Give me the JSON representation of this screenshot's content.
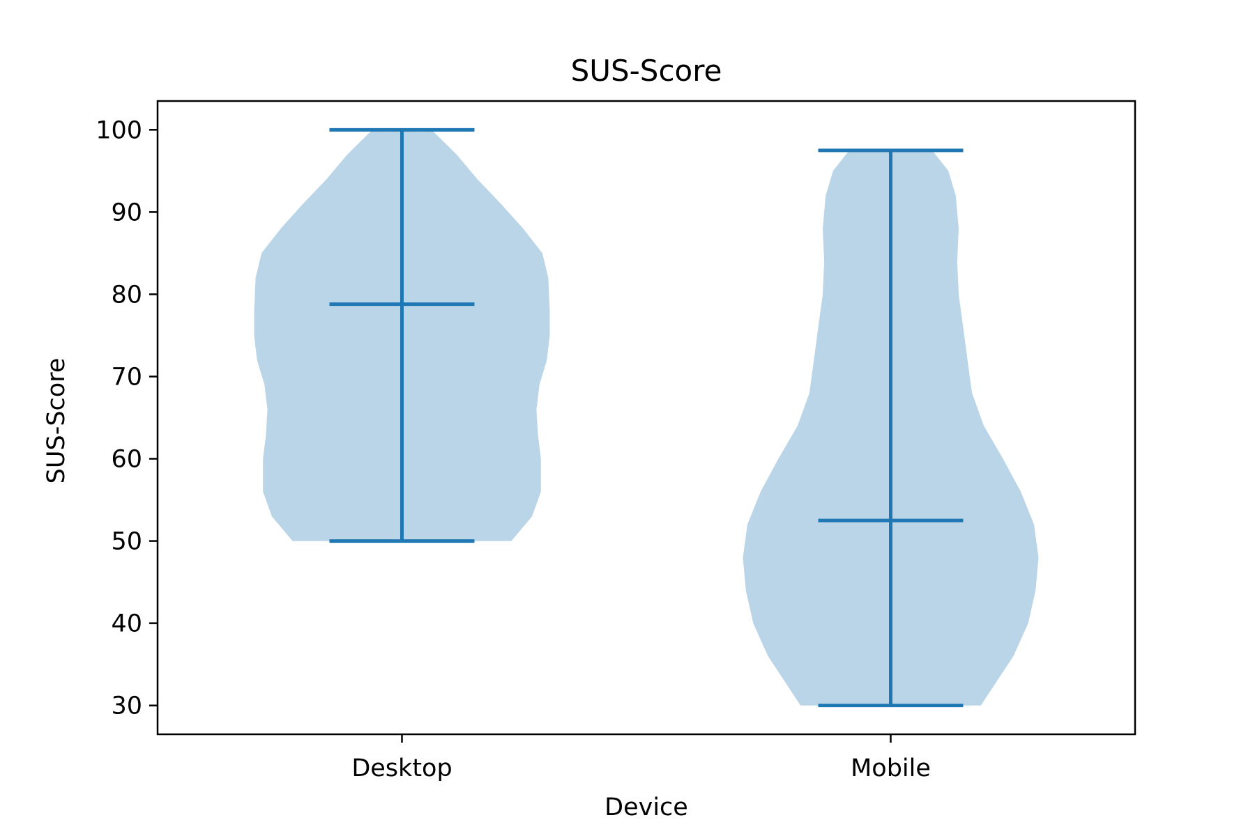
{
  "chart_data": {
    "type": "violin",
    "title": "SUS-Score",
    "xlabel": "Device",
    "ylabel": "SUS-Score",
    "categories": [
      "Desktop",
      "Mobile"
    ],
    "ylim": [
      26.5,
      103.5
    ],
    "yticks": [
      30,
      40,
      50,
      60,
      70,
      80,
      90,
      100
    ],
    "grid": false,
    "colors": {
      "fill": "#bbd5e8",
      "line": "#1f77b4"
    },
    "series": [
      {
        "category": "Desktop",
        "min": 50,
        "max": 100,
        "median": 78.8,
        "density": [
          [
            50,
            0.74
          ],
          [
            53,
            0.88
          ],
          [
            56,
            0.94
          ],
          [
            60,
            0.94
          ],
          [
            63,
            0.92
          ],
          [
            66,
            0.91
          ],
          [
            69,
            0.93
          ],
          [
            72,
            0.98
          ],
          [
            75,
            1.0
          ],
          [
            78,
            1.0
          ],
          [
            82,
            0.99
          ],
          [
            85,
            0.95
          ],
          [
            88,
            0.82
          ],
          [
            91,
            0.67
          ],
          [
            94,
            0.51
          ],
          [
            97,
            0.37
          ],
          [
            100,
            0.2
          ]
        ]
      },
      {
        "category": "Mobile",
        "min": 30,
        "max": 97.5,
        "median": 52.5,
        "density": [
          [
            30,
            0.61
          ],
          [
            33,
            0.72
          ],
          [
            36,
            0.83
          ],
          [
            40,
            0.93
          ],
          [
            44,
            0.98
          ],
          [
            48,
            1.0
          ],
          [
            52,
            0.97
          ],
          [
            56,
            0.88
          ],
          [
            60,
            0.76
          ],
          [
            64,
            0.63
          ],
          [
            68,
            0.55
          ],
          [
            72,
            0.52
          ],
          [
            76,
            0.49
          ],
          [
            80,
            0.46
          ],
          [
            84,
            0.45
          ],
          [
            88,
            0.46
          ],
          [
            92,
            0.44
          ],
          [
            95,
            0.39
          ],
          [
            97.5,
            0.28
          ]
        ]
      }
    ]
  }
}
